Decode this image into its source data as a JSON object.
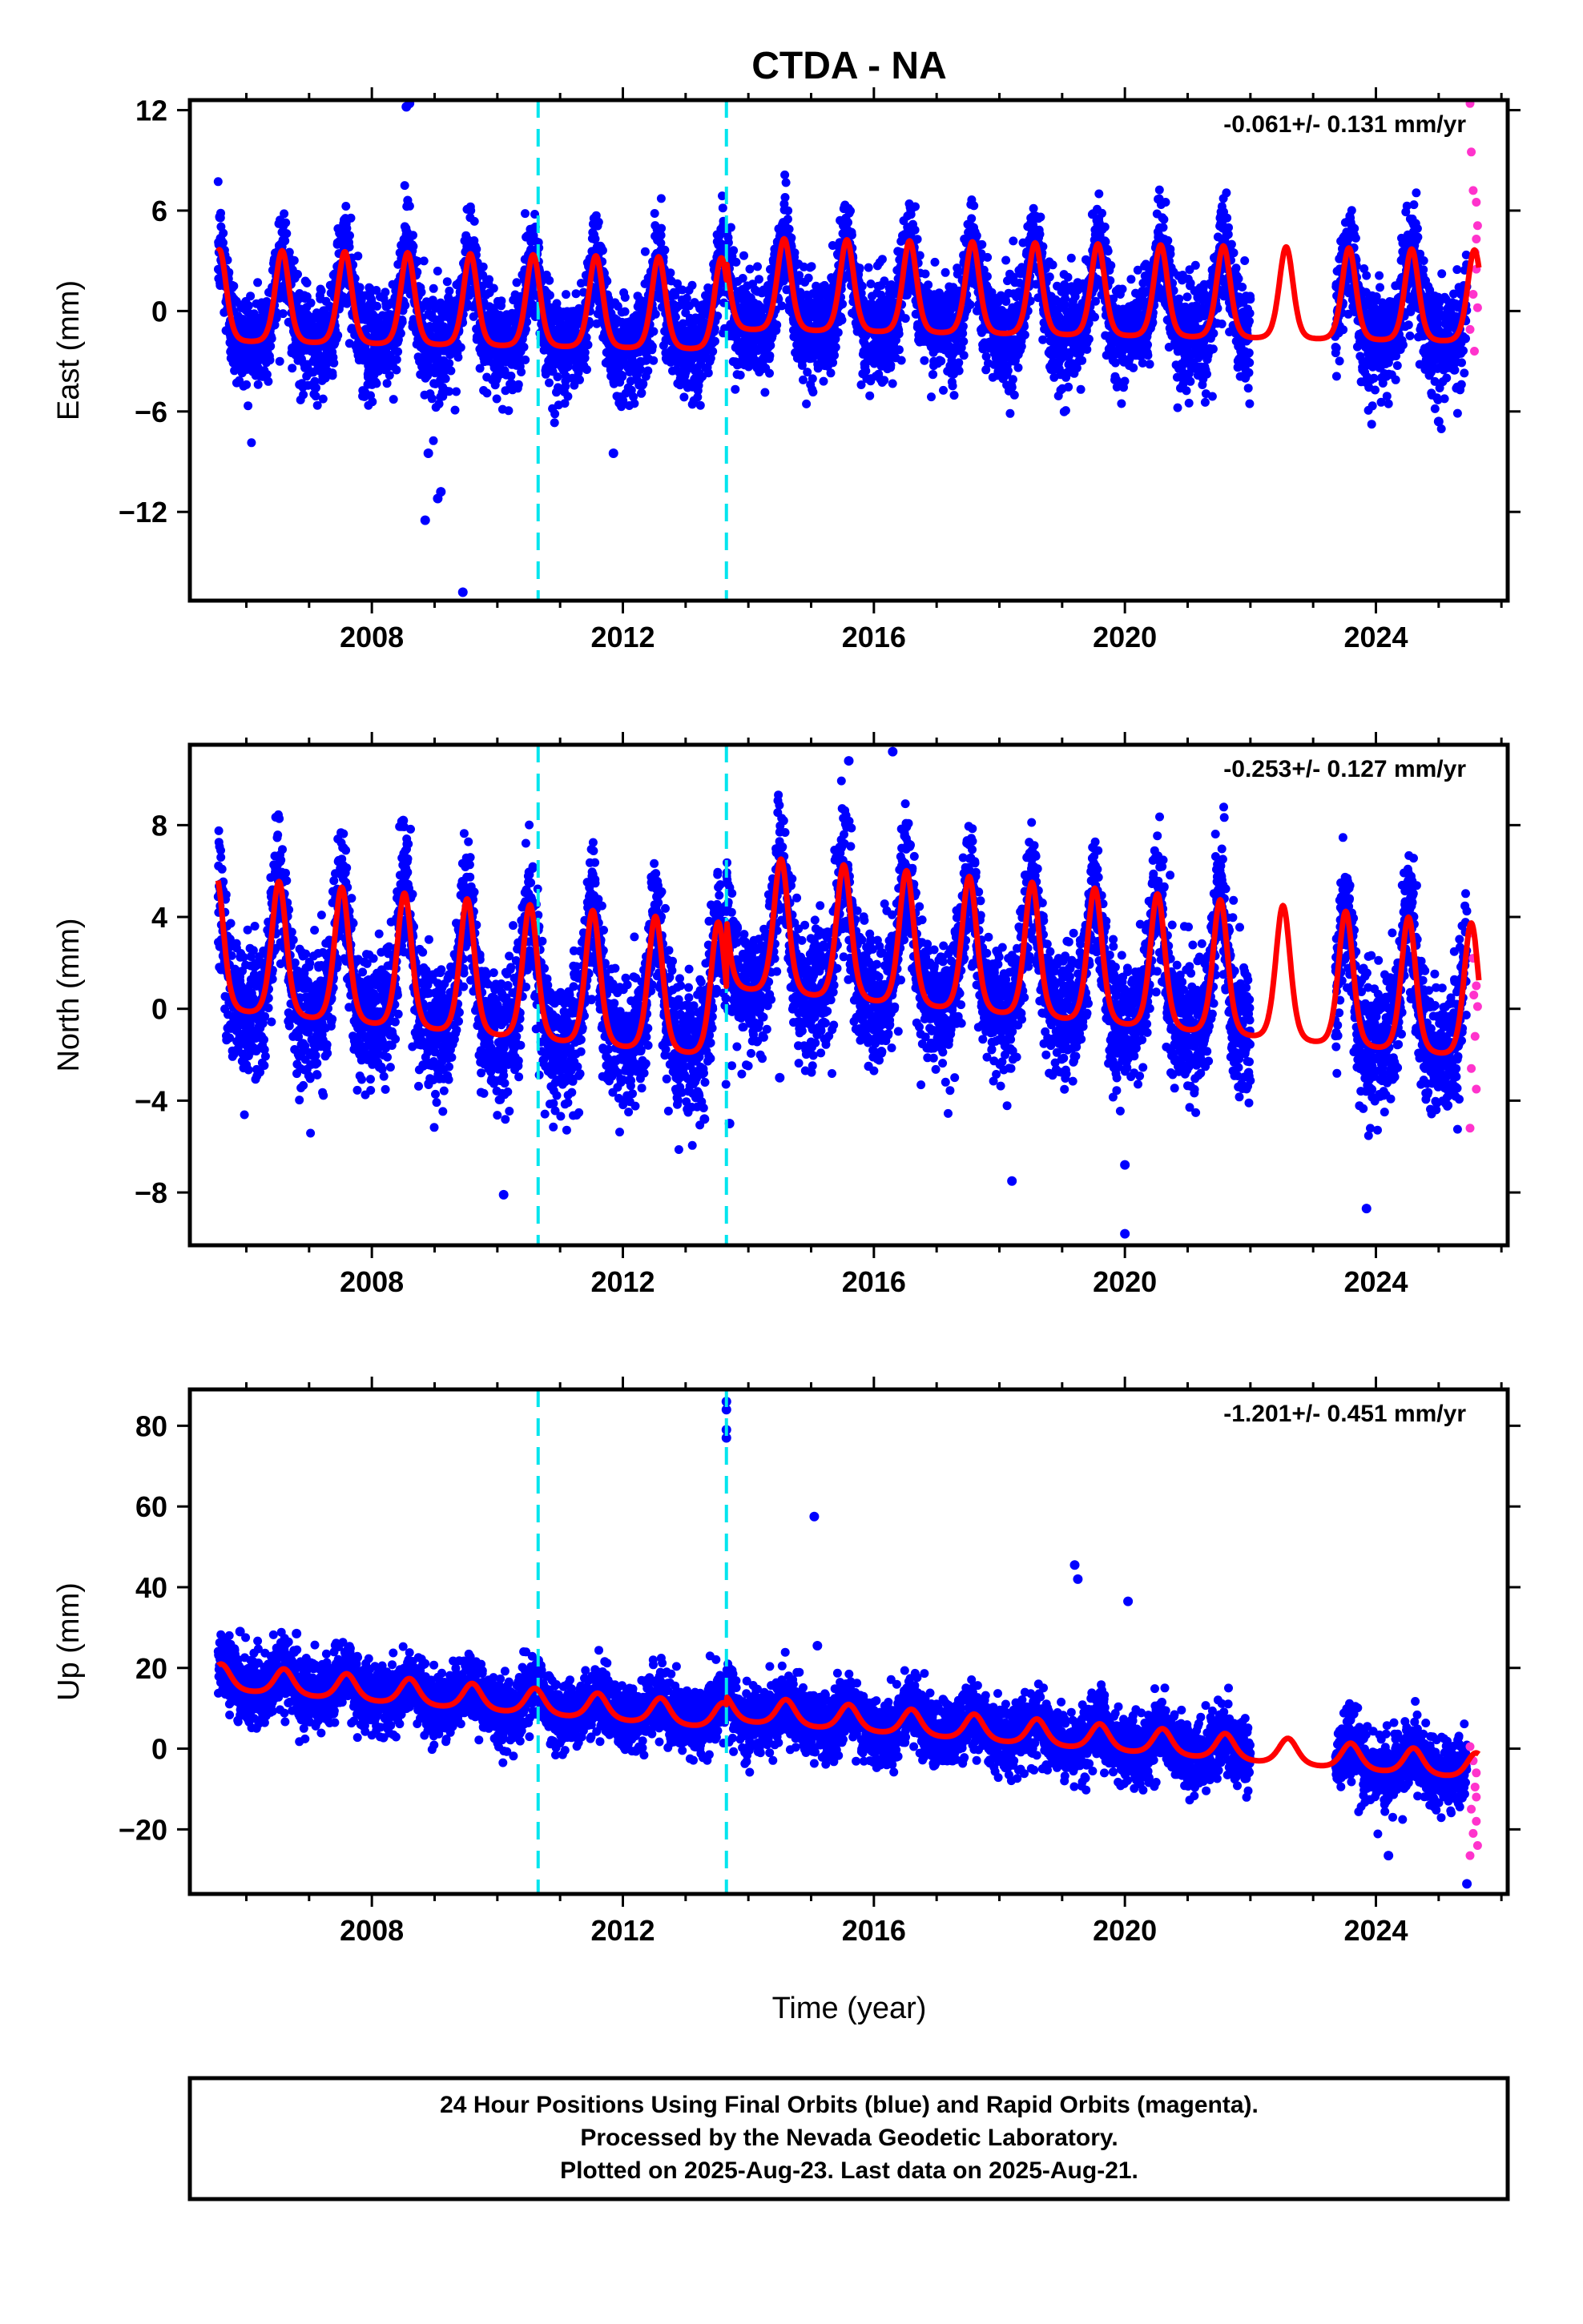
{
  "chart_data": {
    "type": "scatter",
    "title": "CTDA - NA",
    "xlabel": "Time (year)",
    "xlim": [
      2005.1,
      2026.1
    ],
    "xticks_major": [
      2008,
      2012,
      2016,
      2020,
      2024
    ],
    "event_lines_x": [
      2010.65,
      2013.65
    ],
    "colors": {
      "final": "#0000ff",
      "rapid": "#ff33cc",
      "model": "#ff0000",
      "event": "#00e5ee",
      "frame": "#000000"
    },
    "data_start": 2005.55,
    "data_gap": [
      2022.0,
      2023.35
    ],
    "rapid_start": 2025.45,
    "data_end": 2025.64,
    "panels": [
      {
        "ylabel": "East (mm)",
        "rate": "-0.061+/- 0.131 mm/yr",
        "ylim": [
          -17.3,
          12.6
        ],
        "yticks": [
          12,
          6,
          0,
          -6,
          -12
        ],
        "ytick_labels": [
          "12",
          "6",
          "0",
          "−6",
          "−12"
        ],
        "model": {
          "offset": 0.3,
          "trend": -0.061,
          "annual_amp": 3.2,
          "annual_peak": 0.57,
          "sharp": 2.2,
          "steps": [
            [
              2013.65,
              1.2
            ]
          ]
        },
        "scatter_sd": 1.5,
        "outliers": [
          [
            2008.55,
            12.2
          ],
          [
            2008.6,
            12.4
          ],
          [
            2008.85,
            -12.5
          ],
          [
            2009.05,
            -11.2
          ],
          [
            2009.1,
            -10.8
          ],
          [
            2009.45,
            -16.8
          ],
          [
            2008.9,
            -8.5
          ],
          [
            2011.85,
            -8.5
          ],
          [
            2025.0,
            -6.6
          ]
        ],
        "rapid_points": [
          [
            2025.5,
            12.4
          ],
          [
            2025.52,
            9.5
          ],
          [
            2025.55,
            7.2
          ],
          [
            2025.6,
            6.5
          ],
          [
            2025.62,
            5.1
          ],
          [
            2025.58,
            3.5
          ],
          [
            2025.6,
            2.5
          ],
          [
            2025.55,
            1.0
          ],
          [
            2025.62,
            0.2
          ],
          [
            2025.5,
            -1.1
          ],
          [
            2025.57,
            -2.4
          ],
          [
            2025.6,
            4.3
          ]
        ]
      },
      {
        "ylabel": "North (mm)",
        "rate": "-0.253+/- 0.127 mm/yr",
        "ylim": [
          -10.3,
          11.5
        ],
        "yticks": [
          8,
          4,
          0,
          -4,
          -8
        ],
        "ytick_labels": [
          "8",
          "4",
          "0",
          "−4",
          "−8"
        ],
        "model": {
          "offset": 0.4,
          "trend": -0.253,
          "annual_amp": 3.4,
          "annual_peak": 0.52,
          "sharp": 2.0,
          "steps": [
            [
              2013.65,
              3.0
            ]
          ]
        },
        "scatter_sd": 1.4,
        "outliers": [
          [
            2008.5,
            8.2
          ],
          [
            2015.6,
            10.8
          ],
          [
            2016.3,
            11.2
          ],
          [
            2020.0,
            -9.8
          ],
          [
            2020.0,
            -6.8
          ],
          [
            2018.2,
            -7.5
          ],
          [
            2023.85,
            -8.7
          ],
          [
            2010.1,
            -8.1
          ],
          [
            2013.3,
            -4.8
          ],
          [
            2014.5,
            -3.0
          ],
          [
            2013.7,
            -5.0
          ]
        ],
        "rapid_points": [
          [
            2025.5,
            3.3
          ],
          [
            2025.55,
            2.2
          ],
          [
            2025.6,
            1.0
          ],
          [
            2025.62,
            0.1
          ],
          [
            2025.58,
            -1.2
          ],
          [
            2025.52,
            -2.6
          ],
          [
            2025.6,
            -3.5
          ],
          [
            2025.5,
            -5.2
          ],
          [
            2025.56,
            0.6
          ]
        ]
      },
      {
        "ylabel": "Up (mm)",
        "rate": "-1.201+/- 0.451 mm/yr",
        "ylim": [
          -36,
          89
        ],
        "yticks": [
          80,
          60,
          40,
          20,
          0,
          -20
        ],
        "ytick_labels": [
          "80",
          "60",
          "40",
          "20",
          "0",
          "−20"
        ],
        "model": {
          "offset": 6,
          "trend": -1.201,
          "annual_amp": 3.6,
          "annual_peak": 0.6,
          "sharp": 1.2,
          "steps": [
            [
              2013.65,
              2.0
            ]
          ]
        },
        "scatter_sd": 4.0,
        "outliers": [
          [
            2013.65,
            86
          ],
          [
            2013.65,
            84
          ],
          [
            2013.65,
            79
          ],
          [
            2013.65,
            77
          ],
          [
            2015.05,
            57.5
          ],
          [
            2019.2,
            45.5
          ],
          [
            2019.25,
            42
          ],
          [
            2020.05,
            36.5
          ],
          [
            2015.1,
            25.5
          ],
          [
            2005.9,
            29
          ],
          [
            2006.8,
            28.5
          ],
          [
            2025.45,
            -33.5
          ],
          [
            2024.2,
            -26.5
          ]
        ],
        "rapid_points": [
          [
            2025.5,
            0.5
          ],
          [
            2025.55,
            -3.0
          ],
          [
            2025.6,
            -6.0
          ],
          [
            2025.58,
            -9.5
          ],
          [
            2025.6,
            -12.0
          ],
          [
            2025.52,
            -15.0
          ],
          [
            2025.6,
            -18.0
          ],
          [
            2025.55,
            -21.0
          ],
          [
            2025.62,
            -24.0
          ],
          [
            2025.5,
            -26.5
          ]
        ]
      }
    ],
    "footer": [
      "24 Hour Positions Using Final Orbits (blue) and Rapid Orbits (magenta).",
      "Processed by the Nevada Geodetic Laboratory.",
      "Plotted on 2025-Aug-23. Last data on 2025-Aug-21."
    ]
  }
}
